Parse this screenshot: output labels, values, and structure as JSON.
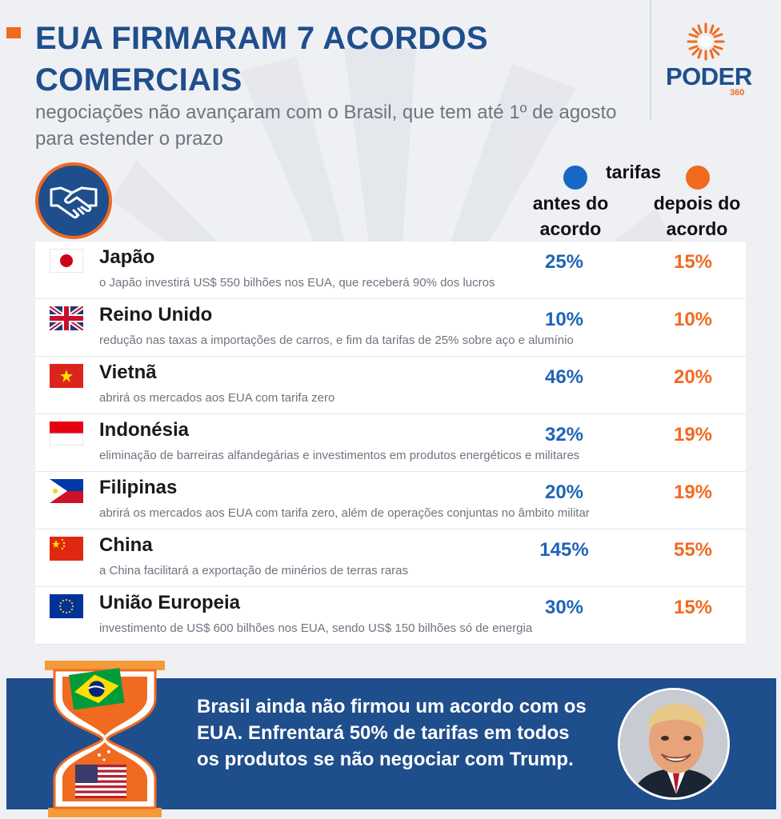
{
  "header": {
    "title": "EUA FIRMARAM 7 ACORDOS COMERCIAIS",
    "subtitle": "negociações não avançaram com o Brasil, que tem até 1º de agosto para estender o prazo"
  },
  "logo": {
    "word": "PODER",
    "number": "360"
  },
  "legend": {
    "title": "tarifas",
    "before_label": "antes do acordo",
    "after_label": "depois do acordo",
    "before_color": "#1768c4",
    "after_color": "#f06a20"
  },
  "rows": [
    {
      "country": "Japão",
      "desc": "o Japão investirá US$ 550 bilhões nos EUA, que receberá 90% dos lucros",
      "before": "25%",
      "after": "15%",
      "flag": "japan-flag-icon"
    },
    {
      "country": "Reino Unido",
      "desc": "redução nas taxas a importações de carros, e fim da tarifas de 25% sobre aço e alumínio",
      "before": "10%",
      "after": "10%",
      "flag": "uk-flag-icon"
    },
    {
      "country": "Vietnã",
      "desc": "abrirá os mercados aos EUA com tarifa zero",
      "before": "46%",
      "after": "20%",
      "flag": "vietnam-flag-icon"
    },
    {
      "country": "Indonésia",
      "desc": "eliminação de barreiras alfandegárias e investimentos em produtos energéticos e militares",
      "before": "32%",
      "after": "19%",
      "flag": "indonesia-flag-icon"
    },
    {
      "country": "Filipinas",
      "desc": "abrirá os mercados aos EUA com tarifa zero, além de operações conjuntas no âmbito militar",
      "before": "20%",
      "after": "19%",
      "flag": "philippines-flag-icon"
    },
    {
      "country": "China",
      "desc": "a China facilitará a exportação de minérios de terras raras",
      "before": "145%",
      "after": "55%",
      "flag": "china-flag-icon"
    },
    {
      "country": "União Europeia",
      "desc": "investimento de US$ 600 bilhões nos EUA, sendo US$ 150 bilhões só de energia",
      "before": "30%",
      "after": "15%",
      "flag": "eu-flag-icon"
    }
  ],
  "banner": {
    "text": "Brasil ainda não firmou um acordo com os EUA. Enfrentará 50% de tarifas em todos os produtos se não negociar com Trump."
  },
  "colors": {
    "brand_blue": "#1f4e8c",
    "accent_orange": "#f06a20",
    "value_blue": "#1f64b8"
  },
  "icons": [
    "handshake-icon",
    "hourglass-icon",
    "sun-logo-icon"
  ]
}
